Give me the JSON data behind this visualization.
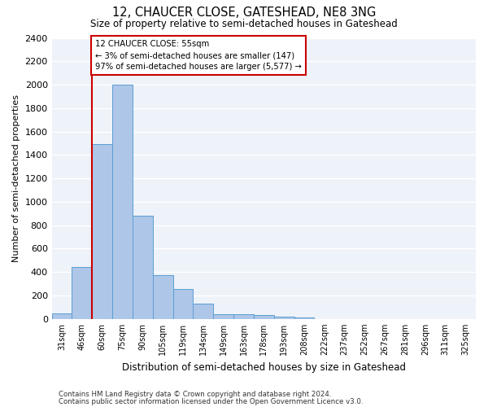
{
  "title": "12, CHAUCER CLOSE, GATESHEAD, NE8 3NG",
  "subtitle": "Size of property relative to semi-detached houses in Gateshead",
  "xlabel": "Distribution of semi-detached houses by size in Gateshead",
  "ylabel": "Number of semi-detached properties",
  "bins": [
    "31sqm",
    "46sqm",
    "60sqm",
    "75sqm",
    "90sqm",
    "105sqm",
    "119sqm",
    "134sqm",
    "149sqm",
    "163sqm",
    "178sqm",
    "193sqm",
    "208sqm",
    "222sqm",
    "237sqm",
    "252sqm",
    "267sqm",
    "281sqm",
    "296sqm",
    "311sqm",
    "325sqm"
  ],
  "values": [
    45,
    440,
    1490,
    2000,
    880,
    375,
    255,
    130,
    40,
    40,
    30,
    20,
    15,
    0,
    0,
    0,
    0,
    0,
    0,
    0,
    0
  ],
  "bar_color": "#aec6e8",
  "bar_edgecolor": "#5a9fd4",
  "marker_label": "12 CHAUCER CLOSE: 55sqm",
  "smaller_pct": "3%",
  "smaller_count": 147,
  "larger_pct": "97%",
  "larger_count": 5577,
  "vline_color": "#cc0000",
  "annotation_box_color": "#cc0000",
  "ylim": [
    0,
    2400
  ],
  "yticks": [
    0,
    200,
    400,
    600,
    800,
    1000,
    1200,
    1400,
    1600,
    1800,
    2000,
    2200,
    2400
  ],
  "background_color": "#eef2f9",
  "grid_color": "#ffffff",
  "footnote1": "Contains HM Land Registry data © Crown copyright and database right 2024.",
  "footnote2": "Contains public sector information licensed under the Open Government Licence v3.0."
}
